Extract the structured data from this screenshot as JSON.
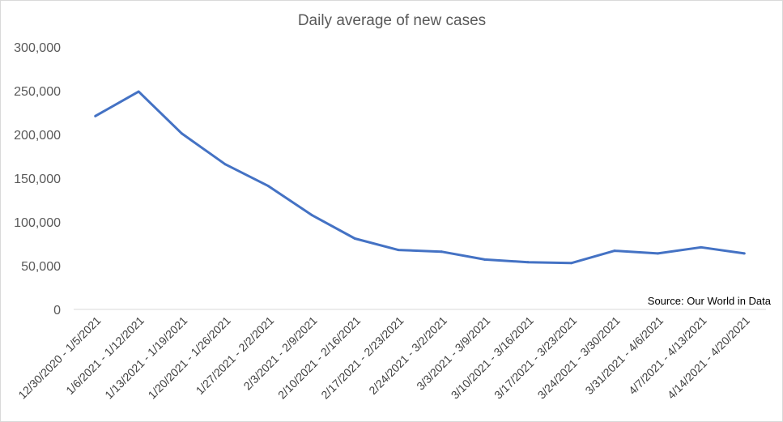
{
  "chart_data": {
    "type": "line",
    "title": "Daily average of new cases",
    "xlabel": "",
    "ylabel": "",
    "categories": [
      "12/30/2020 - 1/5/2021",
      "1/6/2021 - 1/12/2021",
      "1/13/2021 - 1/19/2021",
      "1/20/2021 - 1/26/2021",
      "1/27/2021 - 2/2/2021",
      "2/3/2021 - 2/9/2021",
      "2/10/2021 - 2/16/2021",
      "2/17/2021 - 2/23/2021",
      "2/24/2021 - 3/2/2021",
      "3/3/2021 - 3/9/2021",
      "3/10/2021 - 3/16/2021",
      "3/17/2021 - 3/23/2021",
      "3/24/2021 - 3/30/2021",
      "3/31/2021 - 4/6/2021",
      "4/7/2021 - 4/13/2021",
      "4/14/2021 - 4/20/2021"
    ],
    "series": [
      {
        "values": [
          221000,
          249000,
          201000,
          166000,
          141000,
          108000,
          81000,
          68000,
          66000,
          57000,
          54000,
          53000,
          67000,
          64000,
          71000,
          64000
        ]
      }
    ],
    "ylim": [
      0,
      300000
    ],
    "yticks": [
      0,
      50000,
      100000,
      150000,
      200000,
      250000,
      300000
    ],
    "ytick_labels": [
      "0",
      "50,000",
      "100,000",
      "150,000",
      "200,000",
      "250,000",
      "300,000"
    ],
    "grid": false,
    "line_color": "#4472c4",
    "annotation": "Source: Our World in Data"
  }
}
